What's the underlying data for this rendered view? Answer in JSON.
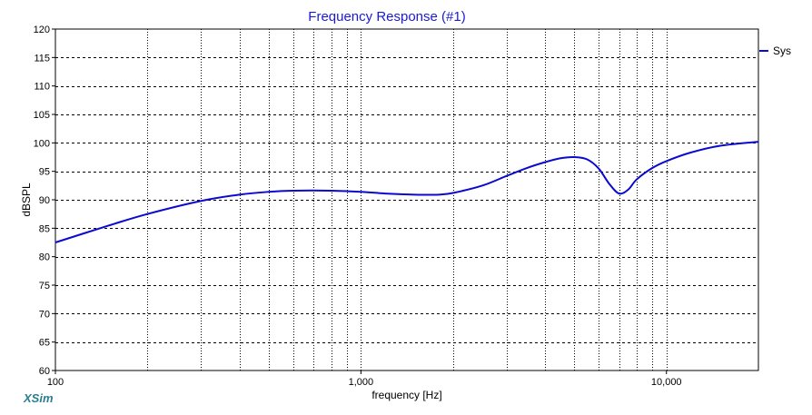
{
  "chart_data": {
    "type": "line",
    "title": "Frequency Response (#1)",
    "xlabel": "frequency [Hz]",
    "ylabel": "dBSPL",
    "x_scale": "log",
    "xlim": [
      100,
      20000
    ],
    "ylim": [
      60,
      120
    ],
    "y_ticks": [
      60,
      65,
      70,
      75,
      80,
      85,
      90,
      95,
      100,
      105,
      110,
      115,
      120
    ],
    "x_tick_labels": [
      {
        "value": 100,
        "label": "100"
      },
      {
        "value": 1000,
        "label": "1,000"
      },
      {
        "value": 10000,
        "label": "10,000"
      }
    ],
    "grid": true,
    "legend_position": "right",
    "series": [
      {
        "name": "Sys",
        "color": "#0a0ad0",
        "x": [
          100,
          150,
          200,
          300,
          400,
          500,
          600,
          800,
          1000,
          1200,
          1500,
          1800,
          2000,
          2500,
          3000,
          3500,
          4000,
          4500,
          5000,
          5500,
          6000,
          6500,
          7000,
          7500,
          8000,
          9000,
          10000,
          12000,
          15000,
          20000
        ],
        "y": [
          82.5,
          85.5,
          87.5,
          89.8,
          90.9,
          91.4,
          91.6,
          91.6,
          91.4,
          91.1,
          90.9,
          90.9,
          91.2,
          92.5,
          94.2,
          95.6,
          96.6,
          97.3,
          97.5,
          97.1,
          95.5,
          92.8,
          91.1,
          91.8,
          93.6,
          95.6,
          96.8,
          98.3,
          99.5,
          100.2
        ]
      }
    ]
  },
  "watermark": "XSim"
}
